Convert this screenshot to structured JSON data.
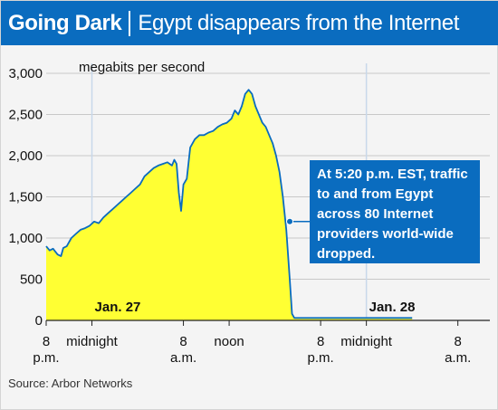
{
  "header": {
    "title": "Going Dark",
    "subtitle": "Egypt disappears from the Internet"
  },
  "source": "Source: Arbor Networks",
  "annotation": "At 5:20 p.m. EST, traffic\nto and from Egypt\nacross 80 Internet\nproviders world-wide\ndropped.",
  "colors": {
    "title_bar": "#0a6cbf",
    "fill": "#ffff33",
    "line": "#0a6cbf",
    "annotation_bg": "#0a6cbf",
    "background": "#f4f4f4"
  },
  "chart_data": {
    "type": "area",
    "title": "Going Dark | Egypt disappears from the Internet",
    "ylabel": "megabits per second",
    "ylim": [
      0,
      3000
    ],
    "yticks": [
      {
        "value": 0,
        "label": "0"
      },
      {
        "value": 500,
        "label": "500"
      },
      {
        "value": 1000,
        "label": "1,000"
      },
      {
        "value": 1500,
        "label": "1,500"
      },
      {
        "value": 2000,
        "label": "2,000"
      },
      {
        "value": 2500,
        "label": "2,500"
      },
      {
        "value": 3000,
        "label": "3,000"
      }
    ],
    "xlim": [
      0,
      32
    ],
    "xunit": "hours since Jan. 26, 8 p.m.",
    "xticks": [
      {
        "hours": 0,
        "label": "8",
        "sub": "p.m."
      },
      {
        "hours": 4,
        "label": "midnight",
        "sub": ""
      },
      {
        "hours": 12,
        "label": "8",
        "sub": "a.m."
      },
      {
        "hours": 16,
        "label": "noon",
        "sub": ""
      },
      {
        "hours": 24,
        "label": "8",
        "sub": "p.m."
      },
      {
        "hours": 28,
        "label": "midnight",
        "sub": ""
      },
      {
        "hours": 36,
        "label": "8",
        "sub": "a.m."
      }
    ],
    "date_markers": [
      {
        "hours": 4,
        "label": "Jan. 27"
      },
      {
        "hours": 28,
        "label": "Jan. 28"
      }
    ],
    "annotation_point": {
      "hours": 21.3,
      "value": 1200
    },
    "grid": true,
    "series": [
      {
        "x": [
          0,
          0.3,
          0.6,
          1.0,
          1.3,
          1.5,
          1.8,
          2.2,
          2.6,
          3.0,
          3.4,
          3.8,
          4.2,
          4.6,
          5.0,
          5.4,
          5.8,
          6.2,
          6.6,
          7.0,
          7.4,
          7.8,
          8.2,
          8.6,
          9.0,
          9.4,
          9.8,
          10.2,
          10.6,
          10.8,
          11.0,
          11.2,
          11.4,
          11.6,
          11.8,
          12.0,
          12.3,
          12.6,
          13.0,
          13.4,
          13.8,
          14.2,
          14.6,
          15.0,
          15.4,
          15.8,
          16.2,
          16.5,
          16.8,
          17.1,
          17.4,
          17.7,
          18.0,
          18.3,
          18.6,
          18.9,
          19.2,
          19.5,
          19.8,
          20.1,
          20.4,
          20.7,
          21.0,
          21.3,
          21.5,
          21.7,
          22,
          24,
          26,
          28,
          30,
          32
        ],
        "values": [
          900,
          850,
          870,
          800,
          780,
          880,
          900,
          1000,
          1050,
          1100,
          1120,
          1150,
          1200,
          1180,
          1250,
          1300,
          1350,
          1400,
          1450,
          1500,
          1550,
          1600,
          1650,
          1750,
          1800,
          1850,
          1880,
          1900,
          1920,
          1900,
          1880,
          1950,
          1900,
          1550,
          1330,
          1650,
          1720,
          2100,
          2200,
          2250,
          2250,
          2280,
          2300,
          2350,
          2380,
          2400,
          2450,
          2550,
          2500,
          2600,
          2750,
          2800,
          2750,
          2600,
          2500,
          2400,
          2350,
          2250,
          2150,
          2000,
          1800,
          1500,
          1100,
          500,
          80,
          30,
          30,
          30,
          30,
          30,
          30,
          30
        ]
      }
    ]
  }
}
